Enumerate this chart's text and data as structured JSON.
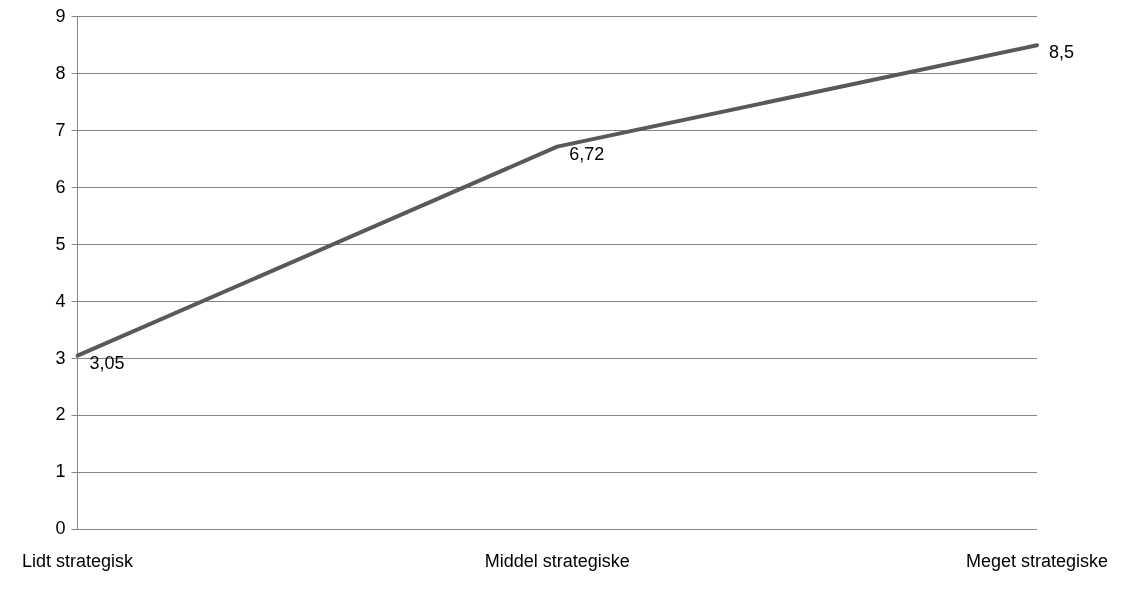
{
  "chart_data": {
    "type": "line",
    "categories": [
      "Lidt strategisk",
      "Middel strategiske",
      "Meget strategiske"
    ],
    "series": [
      {
        "color": "#595959",
        "values": [
          3.05,
          6.72,
          8.5
        ],
        "value_labels": [
          "3,05",
          "6,72",
          "8,5"
        ]
      }
    ],
    "ylim": [
      0,
      9
    ],
    "yticks": [
      0,
      1,
      2,
      3,
      4,
      5,
      6,
      7,
      8,
      9
    ],
    "grid": "y",
    "legend": false,
    "marker": "none",
    "line_style": "solid"
  }
}
